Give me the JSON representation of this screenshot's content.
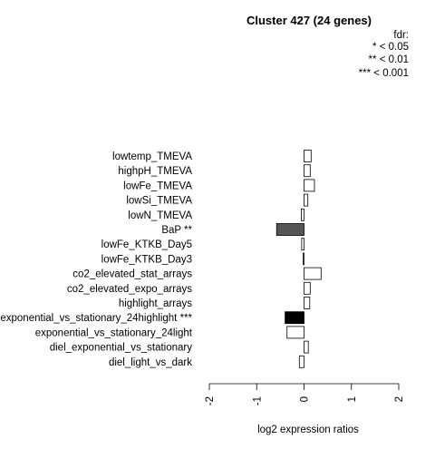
{
  "chart_data": {
    "type": "bar",
    "orientation": "horizontal",
    "title": "Cluster 427 (24 genes)",
    "xlabel": "log2 expression ratios",
    "ylabel": "",
    "xlim": [
      -2,
      2
    ],
    "xticks": [
      "-2",
      "-1",
      "0",
      "1",
      "2"
    ],
    "legend": {
      "title": "fdr:",
      "entries": [
        "* < 0.05",
        "** < 0.01",
        "*** < 0.001"
      ],
      "placement": "top-right"
    },
    "categories": [
      "lowtemp_TMEVA",
      "highpH_TMEVA",
      "lowFe_TMEVA",
      "lowSi_TMEVA",
      "lowN_TMEVA",
      "BaP **",
      "lowFe_KTKB_Day5",
      "lowFe_KTKB_Day3",
      "co2_elevated_stat_arrays",
      "co2_elevated_expo_arrays",
      "highlight_arrays",
      "exponential_vs_stationary_24highlight ***",
      "exponential_vs_stationary_24light",
      "diel_exponential_vs_stationary",
      "diel_light_vs_dark"
    ],
    "values": [
      0.15,
      0.13,
      0.22,
      0.08,
      -0.06,
      -0.58,
      -0.05,
      -0.02,
      0.36,
      0.13,
      0.12,
      -0.4,
      -0.36,
      0.09,
      -0.1
    ],
    "fill_colors": [
      "#ffffff",
      "#ffffff",
      "#ffffff",
      "#ffffff",
      "#ffffff",
      "#555555",
      "#ffffff",
      "#ffffff",
      "#ffffff",
      "#ffffff",
      "#ffffff",
      "#000000",
      "#ffffff",
      "#ffffff",
      "#ffffff"
    ]
  }
}
